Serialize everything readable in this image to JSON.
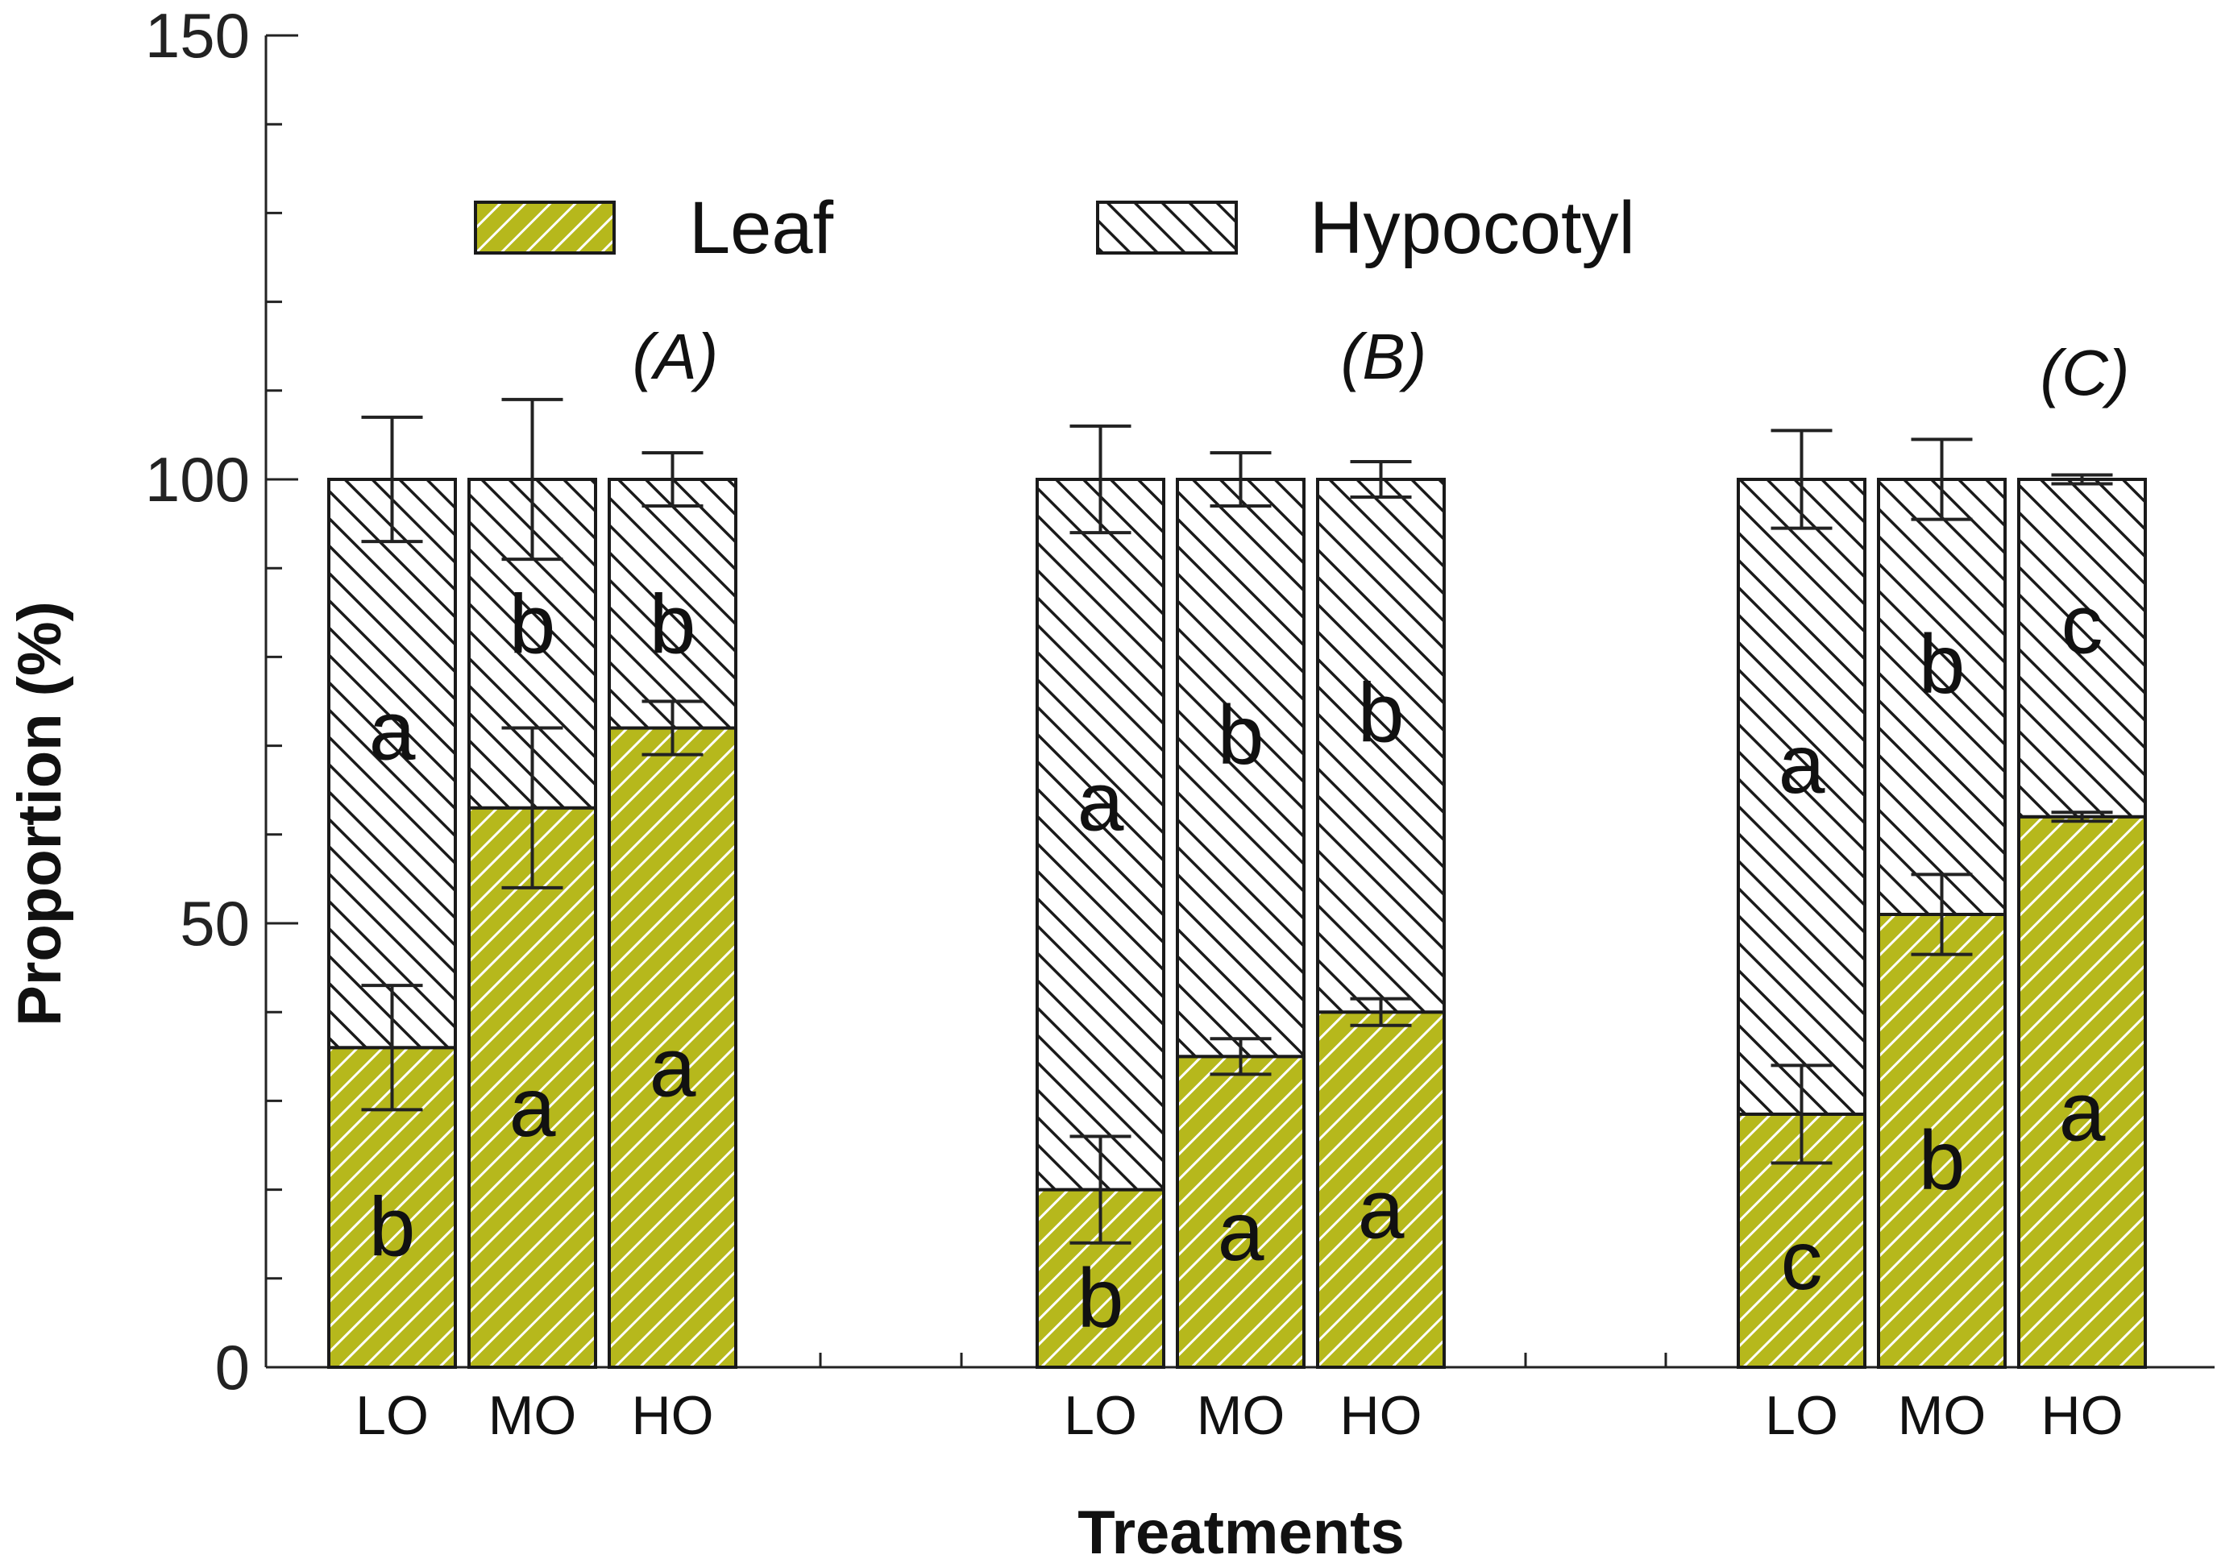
{
  "chart_data": {
    "type": "bar",
    "stacked": true,
    "xlabel": "Treatments",
    "ylabel": "Proportion (%)",
    "ylim": [
      0,
      150
    ],
    "yticks": [
      0,
      50,
      100,
      150
    ],
    "legend": {
      "position": "top",
      "entries": [
        {
          "name": "Leaf",
          "pattern": "leaf-hatch"
        },
        {
          "name": "Hypocotyl",
          "pattern": "hypo-hatch"
        }
      ]
    },
    "colors": {
      "leaf": "#b6b81c",
      "hypocotyl": "#ffffff",
      "stroke": "#1a1a1a"
    },
    "panels": [
      {
        "label": "(A)",
        "categories": [
          "LO",
          "MO",
          "HO"
        ],
        "leaf": [
          36,
          63,
          72
        ],
        "leaf_err": [
          7,
          9,
          3
        ],
        "hypocotyl": [
          64,
          37,
          28
        ],
        "hypocotyl_err": [
          7,
          9,
          3
        ],
        "leaf_sig": [
          "b",
          "a",
          "a"
        ],
        "hypocotyl_sig": [
          "a",
          "b",
          "b"
        ]
      },
      {
        "label": "(B)",
        "categories": [
          "LO",
          "MO",
          "HO"
        ],
        "leaf": [
          20,
          35,
          40
        ],
        "leaf_err": [
          6,
          2,
          1.5
        ],
        "hypocotyl": [
          80,
          65,
          60
        ],
        "hypocotyl_err": [
          6,
          3,
          2
        ],
        "leaf_sig": [
          "b",
          "a",
          "a"
        ],
        "hypocotyl_sig": [
          "a",
          "b",
          "b"
        ]
      },
      {
        "label": "(C)",
        "categories": [
          "LO",
          "MO",
          "HO"
        ],
        "leaf": [
          28.5,
          51,
          62
        ],
        "leaf_err": [
          5.5,
          4.5,
          0.5
        ],
        "hypocotyl": [
          71.5,
          49,
          38
        ],
        "hypocotyl_err": [
          5.5,
          4.5,
          0.5
        ],
        "leaf_sig": [
          "c",
          "b",
          "a"
        ],
        "hypocotyl_sig": [
          "a",
          "b",
          "c"
        ]
      }
    ]
  }
}
